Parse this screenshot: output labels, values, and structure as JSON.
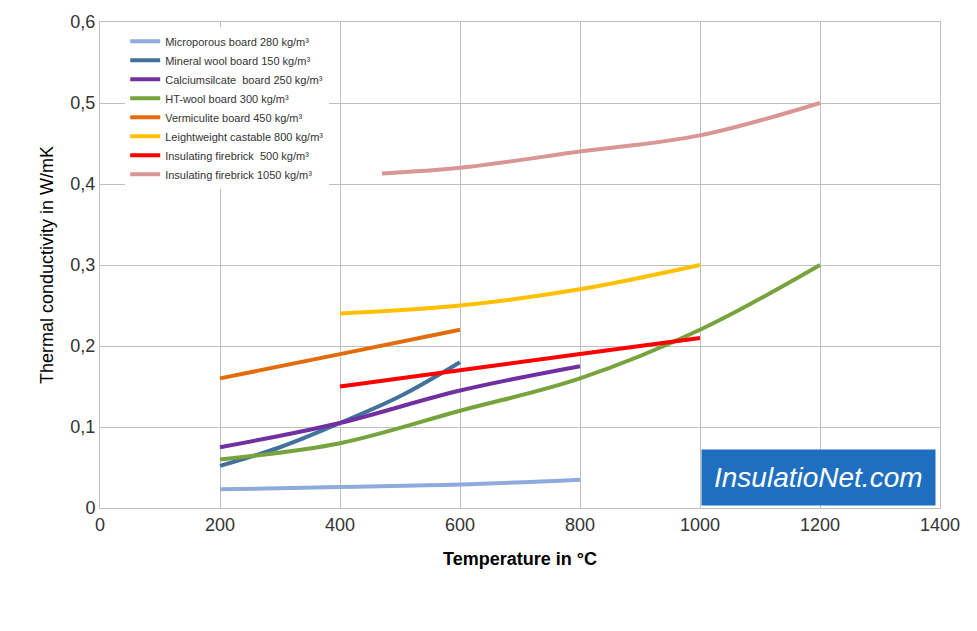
{
  "chart_data": {
    "type": "line",
    "x_label": "Temperature in °C",
    "y_label": "Thermal conductivity in W/mK",
    "xlim": [
      0,
      1400
    ],
    "xticks": [
      0,
      200,
      400,
      600,
      800,
      1000,
      1200,
      1400
    ],
    "ylim": [
      0,
      0.6
    ],
    "yticks": [
      0,
      {
        "value": 0.1,
        "label": "0,1"
      },
      {
        "value": 0.2,
        "label": "0,2"
      },
      {
        "value": 0.3,
        "label": "0,3"
      },
      {
        "value": 0.4,
        "label": "0,4"
      },
      {
        "value": 0.5,
        "label": "0,5"
      },
      {
        "value": 0.6,
        "label": "0,6"
      }
    ],
    "grid": true,
    "legend": "upper left",
    "line_style": "solid",
    "annotations": [
      {
        "text": "InsulatioNet.com"
      }
    ],
    "series": [
      {
        "name": "Microporous board 280 kg/m³",
        "color": "#8faadc",
        "x": [
          200,
          400,
          600,
          800
        ],
        "values": [
          0.023,
          0.026,
          0.029,
          0.035
        ]
      },
      {
        "name": "Mineral wool board 150 kg/m³",
        "color": "#41719c",
        "x": [
          200,
          300,
          400,
          500,
          600
        ],
        "values": [
          0.052,
          0.075,
          0.105,
          0.138,
          0.18
        ]
      },
      {
        "name": "Calciumsilcate  board 250 kg/m³",
        "color": "#7030a0",
        "x": [
          200,
          400,
          600,
          800
        ],
        "values": [
          0.075,
          0.105,
          0.145,
          0.175
        ]
      },
      {
        "name": "HT-wool board 300 kg/m³",
        "color": "#77a33c",
        "x": [
          200,
          400,
          600,
          800,
          1000,
          1200
        ],
        "values": [
          0.06,
          0.08,
          0.12,
          0.16,
          0.22,
          0.3
        ]
      },
      {
        "name": "Vermiculite board 450 kg/m³",
        "color": "#e36c09",
        "x": [
          200,
          400,
          600
        ],
        "values": [
          0.16,
          0.19,
          0.22
        ]
      },
      {
        "name": "Leightweight castable 800 kg/m³",
        "color": "#ffc000",
        "x": [
          400,
          600,
          800,
          1000
        ],
        "values": [
          0.24,
          0.25,
          0.27,
          0.3
        ]
      },
      {
        "name": "Insulating firebrick  500 kg/m³",
        "color": "#ff0000",
        "x": [
          400,
          600,
          800,
          1000
        ],
        "values": [
          0.15,
          0.17,
          0.19,
          0.21
        ]
      },
      {
        "name": "Insulating firebrick 1050 kg/m³",
        "color": "#d99694",
        "x": [
          470,
          600,
          800,
          1000,
          1200
        ],
        "values": [
          0.413,
          0.42,
          0.44,
          0.46,
          0.5
        ]
      }
    ]
  }
}
